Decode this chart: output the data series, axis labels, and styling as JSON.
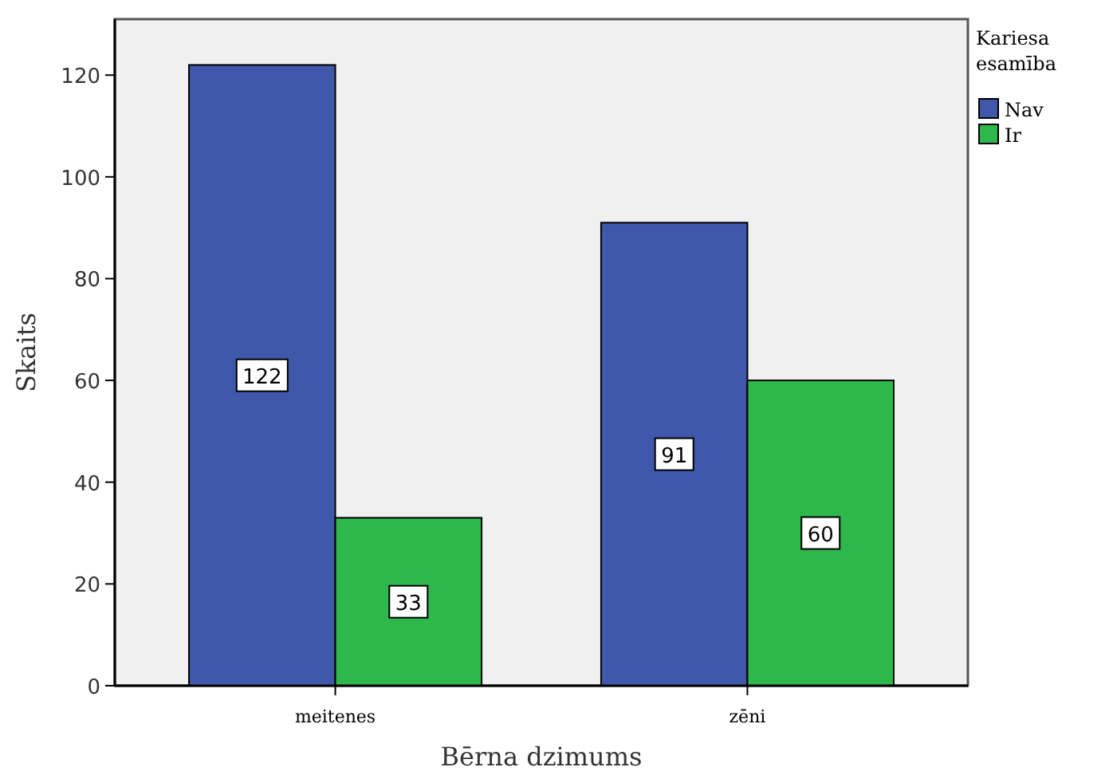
{
  "chart_data": {
    "type": "bar",
    "xlabel": "Bērna dzimums",
    "ylabel": "Skaits",
    "legend_title": "Kariesa esamība",
    "categories": [
      "meitenes",
      "zēni"
    ],
    "series": [
      {
        "name": "Nav",
        "color": "#3f58a9",
        "values": [
          122,
          91
        ]
      },
      {
        "name": "Ir",
        "color": "#2eb84b",
        "values": [
          33,
          60
        ]
      }
    ],
    "ylim": [
      0,
      131
    ],
    "yticks": [
      0,
      20,
      40,
      60,
      80,
      100,
      120
    ],
    "data_labels": true,
    "legend": "right",
    "grid": false
  }
}
